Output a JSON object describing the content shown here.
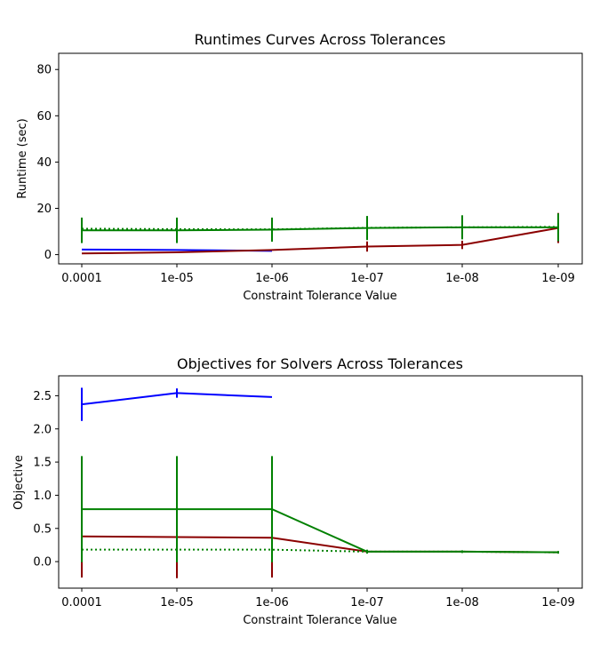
{
  "chart_data": [
    {
      "type": "line",
      "title": "Runtimes Curves Across Tolerances",
      "xlabel": "Constraint Tolerance Value",
      "ylabel": "Runtime (sec)",
      "categories": [
        "0.0001",
        "1e-05",
        "1e-06",
        "1e-07",
        "1e-08",
        "1e-09"
      ],
      "ylim": [
        -4,
        87
      ],
      "yticks": [
        "0",
        "20",
        "40",
        "60",
        "80"
      ],
      "series": [
        {
          "color": "#0000ff",
          "style": "solid",
          "values": [
            2.2,
            2.0,
            1.6,
            null,
            null,
            null
          ],
          "err": [
            0,
            0,
            0,
            null,
            null,
            null
          ]
        },
        {
          "color": "#008000",
          "style": "dotted",
          "values": [
            11.2,
            11.0,
            10.9,
            11.6,
            11.8,
            12.0
          ],
          "err": [
            0,
            0,
            0,
            0,
            0,
            0
          ]
        },
        {
          "color": "#8b0000",
          "style": "solid",
          "values": [
            0.5,
            1.0,
            2.0,
            3.5,
            4.2,
            11.5
          ],
          "err": [
            0,
            0,
            0,
            2.2,
            1.8,
            6.5
          ]
        },
        {
          "color": "#008000",
          "style": "solid",
          "values": [
            10.5,
            10.5,
            10.8,
            11.5,
            11.8,
            11.8
          ],
          "err": [
            5.5,
            5.5,
            5.2,
            5.2,
            5.2,
            6.0
          ]
        }
      ]
    },
    {
      "type": "line",
      "title": "Objectives for Solvers Across Tolerances",
      "xlabel": "Constraint Tolerance Value",
      "ylabel": "Objective",
      "categories": [
        "0.0001",
        "1e-05",
        "1e-06",
        "1e-07",
        "1e-08",
        "1e-09"
      ],
      "ylim": [
        -0.4,
        2.8
      ],
      "yticks": [
        "0.0",
        "0.5",
        "1.0",
        "1.5",
        "2.0",
        "2.5"
      ],
      "series": [
        {
          "color": "#0000ff",
          "style": "solid",
          "values": [
            2.37,
            2.54,
            2.48,
            null,
            null,
            null
          ],
          "err": [
            0.25,
            0.07,
            0,
            null,
            null,
            null
          ]
        },
        {
          "color": "#8b0000",
          "style": "solid",
          "values": [
            0.38,
            0.37,
            0.36,
            0.15,
            0.15,
            0.14
          ],
          "err": [
            0.62,
            0.62,
            0.6,
            0,
            0,
            0
          ]
        },
        {
          "color": "#008000",
          "style": "dotted",
          "values": [
            0.18,
            0.18,
            0.18,
            0.15,
            0.15,
            0.14
          ],
          "err": [
            0,
            0,
            0,
            0,
            0,
            0
          ]
        },
        {
          "color": "#008000",
          "style": "solid",
          "values": [
            0.79,
            0.79,
            0.79,
            0.15,
            0.15,
            0.14
          ],
          "err": [
            0.8,
            0.8,
            0.8,
            0.03,
            0.02,
            0.02
          ]
        }
      ]
    }
  ]
}
